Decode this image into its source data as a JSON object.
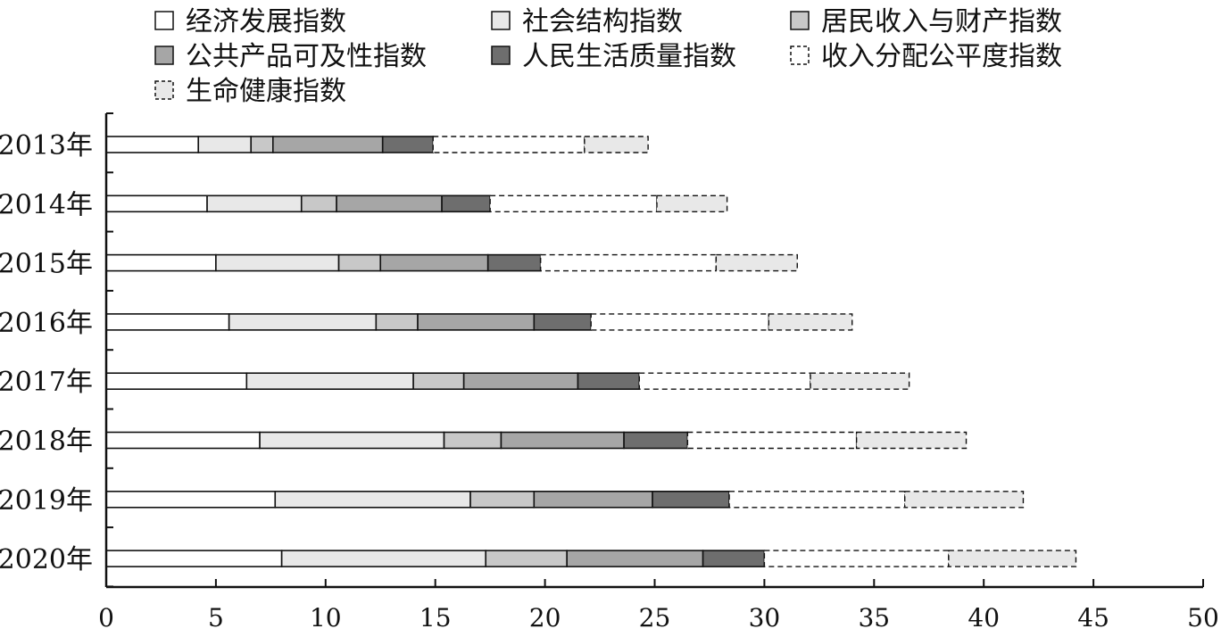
{
  "chart_data": {
    "type": "bar",
    "orientation": "horizontal",
    "stacked": true,
    "categories": [
      "2013年",
      "2014年",
      "2015年",
      "2016年",
      "2017年",
      "2018年",
      "2019年",
      "2020年"
    ],
    "series": [
      {
        "name": "经济发展指数",
        "color": "#ffffff",
        "dashed": false,
        "values": [
          4.2,
          4.6,
          5.0,
          5.6,
          6.4,
          7.0,
          7.7,
          8.0
        ]
      },
      {
        "name": "社会结构指数",
        "color": "#e8e8e8",
        "dashed": false,
        "values": [
          2.4,
          4.3,
          5.6,
          6.7,
          7.6,
          8.4,
          8.9,
          9.3
        ]
      },
      {
        "name": "居民收入与财产指数",
        "color": "#c8c8c8",
        "dashed": false,
        "values": [
          1.0,
          1.6,
          1.9,
          1.9,
          2.3,
          2.6,
          2.9,
          3.7
        ]
      },
      {
        "name": "公共产品可及性指数",
        "color": "#a6a6a6",
        "dashed": false,
        "values": [
          5.0,
          4.8,
          4.9,
          5.3,
          5.2,
          5.6,
          5.4,
          6.2
        ]
      },
      {
        "name": "人民生活质量指数",
        "color": "#6e6e6e",
        "dashed": false,
        "values": [
          2.3,
          2.2,
          2.4,
          2.6,
          2.8,
          2.9,
          3.5,
          2.8
        ]
      },
      {
        "name": "收入分配公平度指数",
        "color": "#ffffff",
        "dashed": true,
        "values": [
          6.9,
          7.6,
          8.0,
          8.1,
          7.8,
          7.7,
          8.0,
          8.4
        ]
      },
      {
        "name": "生命健康指数",
        "color": "#e8e8e8",
        "dashed": true,
        "values": [
          2.9,
          3.2,
          3.7,
          3.8,
          4.5,
          5.0,
          5.4,
          5.8
        ]
      }
    ],
    "xlim": [
      0,
      50
    ],
    "xticks": [
      "0",
      "5",
      "10",
      "15",
      "20",
      "25",
      "30",
      "35",
      "40",
      "45",
      "50"
    ],
    "title": "",
    "xlabel": "",
    "ylabel": "",
    "legend_position": "top",
    "grid": false
  }
}
